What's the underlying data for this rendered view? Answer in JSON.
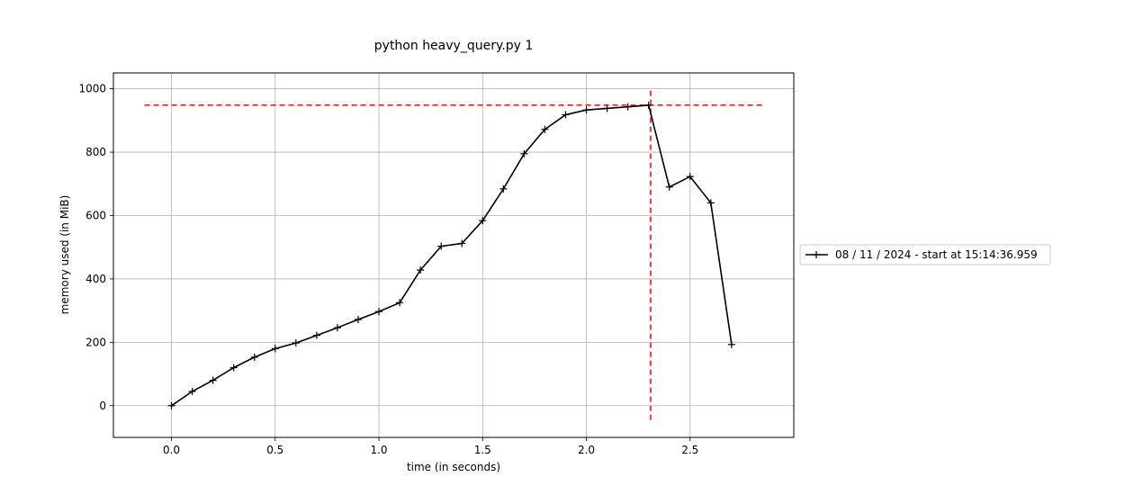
{
  "chart_data": {
    "type": "line",
    "title": "python heavy_query.py 1",
    "xlabel": "time (in seconds)",
    "ylabel": "memory used (in MiB)",
    "xlim": [
      -0.28,
      3.0
    ],
    "ylim": [
      -100,
      1050
    ],
    "xticks": [
      0.0,
      0.5,
      1.0,
      1.5,
      2.0,
      2.5
    ],
    "xtick_labels": [
      "0.0",
      "0.5",
      "1.0",
      "1.5",
      "2.0",
      "2.5"
    ],
    "yticks": [
      0,
      200,
      400,
      600,
      800,
      1000
    ],
    "ytick_labels": [
      "0",
      "200",
      "400",
      "600",
      "800",
      "1000"
    ],
    "grid": true,
    "legend_position": "right, outside plot",
    "series": [
      {
        "name": "08 / 11 / 2024 - start at 15:14:36.959",
        "color": "#000000",
        "marker": "+",
        "x": [
          0.0,
          0.1,
          0.2,
          0.3,
          0.4,
          0.5,
          0.6,
          0.7,
          0.8,
          0.9,
          1.0,
          1.1,
          1.2,
          1.3,
          1.4,
          1.5,
          1.6,
          1.7,
          1.8,
          1.9,
          2.0,
          2.1,
          2.2,
          2.3,
          2.4,
          2.5,
          2.6,
          2.7
        ],
        "y": [
          0,
          45,
          80,
          120,
          153,
          180,
          198,
          222,
          246,
          272,
          297,
          325,
          428,
          503,
          512,
          584,
          684,
          795,
          872,
          918,
          933,
          938,
          943,
          948,
          690,
          723,
          640,
          193
        ]
      }
    ],
    "reference_lines": [
      {
        "orientation": "horizontal",
        "y": 948,
        "x_from": -0.13,
        "x_to": 2.85,
        "color": "#ff0000",
        "style": "dashed"
      },
      {
        "orientation": "vertical",
        "x": 2.31,
        "y_from": -45,
        "y_to": 1000,
        "color": "#ff0000",
        "style": "dashed"
      }
    ]
  }
}
